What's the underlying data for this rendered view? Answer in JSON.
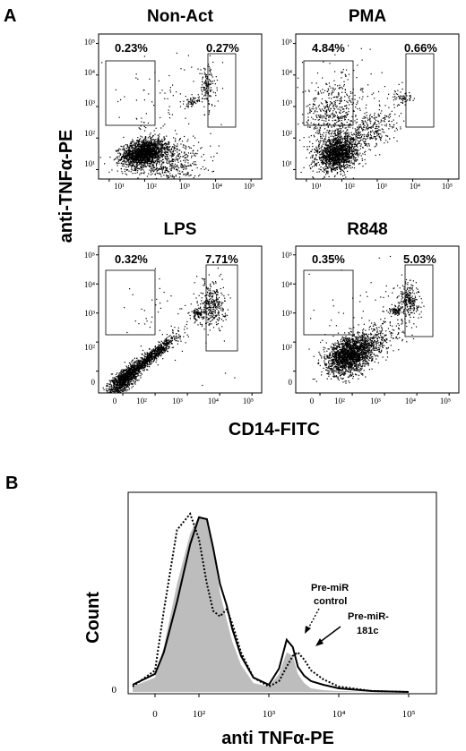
{
  "panel_a": {
    "label": "A",
    "y_axis_title": "anti-TNFα-PE",
    "x_axis_title": "CD14-FITC",
    "tick_labels_top_x": [
      "10¹",
      "10²",
      "10³",
      "10⁴",
      "10⁵"
    ],
    "tick_labels_top_y": [
      "10¹",
      "10²",
      "10³",
      "10⁴",
      "10⁵"
    ],
    "tick_labels_bottom_x": [
      "0",
      "10²",
      "10³",
      "10⁴",
      "10⁵"
    ],
    "tick_labels_bottom_y": [
      "0",
      "10²",
      "10³",
      "10⁴",
      "10⁵"
    ]
  },
  "panel_b": {
    "label": "B",
    "y_axis_title": "Count",
    "x_axis_title": "anti TNFα-PE",
    "y_zero": "0",
    "x_ticks": [
      "0",
      "10²",
      "10³",
      "10⁴",
      "10⁵"
    ],
    "annotation_control": [
      "Pre-miR",
      "control"
    ],
    "annotation_181c": [
      "Pre-miR-",
      "181c"
    ]
  },
  "chart_data": [
    {
      "type": "scatter",
      "title": "Non-Act",
      "xlabel": "CD14-FITC",
      "ylabel": "anti-TNFα-PE",
      "x_scale": "log",
      "y_scale": "log",
      "xlim": [
        10,
        100000
      ],
      "ylim": [
        10,
        100000
      ],
      "gates": [
        {
          "label": "0.23%",
          "x_range": [
            15,
            300
          ],
          "y_range": [
            300,
            15000
          ]
        },
        {
          "label": "0.27%",
          "x_range": [
            6000,
            20000
          ],
          "y_range": [
            300,
            30000
          ]
        }
      ]
    },
    {
      "type": "scatter",
      "title": "PMA",
      "xlabel": "CD14-FITC",
      "ylabel": "anti-TNFα-PE",
      "x_scale": "log",
      "y_scale": "log",
      "xlim": [
        10,
        100000
      ],
      "ylim": [
        10,
        100000
      ],
      "gates": [
        {
          "label": "4.84%",
          "x_range": [
            15,
            300
          ],
          "y_range": [
            300,
            15000
          ]
        },
        {
          "label": "0.66%",
          "x_range": [
            6000,
            20000
          ],
          "y_range": [
            300,
            30000
          ]
        }
      ]
    },
    {
      "type": "scatter",
      "title": "LPS",
      "xlabel": "CD14-FITC",
      "ylabel": "anti-TNFα-PE",
      "x_scale": "log",
      "y_scale": "log",
      "xlim": [
        0,
        100000
      ],
      "ylim": [
        0,
        100000
      ],
      "gates": [
        {
          "label": "0.32%",
          "x_range": [
            10,
            300
          ],
          "y_range": [
            300,
            15000
          ]
        },
        {
          "label": "7.71%",
          "x_range": [
            6000,
            20000
          ],
          "y_range": [
            300,
            30000
          ]
        }
      ]
    },
    {
      "type": "scatter",
      "title": "R848",
      "xlabel": "CD14-FITC",
      "ylabel": "anti-TNFα-PE",
      "x_scale": "log",
      "y_scale": "log",
      "xlim": [
        0,
        100000
      ],
      "ylim": [
        0,
        100000
      ],
      "gates": [
        {
          "label": "0.35%",
          "x_range": [
            10,
            300
          ],
          "y_range": [
            300,
            15000
          ]
        },
        {
          "label": "5.03%",
          "x_range": [
            6000,
            20000
          ],
          "y_range": [
            300,
            30000
          ]
        }
      ]
    },
    {
      "type": "area",
      "title": "",
      "xlabel": "anti TNFα-PE",
      "ylabel": "Count",
      "x_scale": "log",
      "xlim": [
        -30,
        200000
      ],
      "ylim": [
        0,
        1
      ],
      "series": [
        {
          "style": "filled-gray",
          "x": [
            -30,
            0,
            20,
            50,
            80,
            100,
            130,
            160,
            200,
            250,
            300,
            400,
            600,
            1000,
            1400,
            1800,
            2200,
            2600,
            3200,
            4000,
            6000,
            10000,
            30000,
            100000
          ],
          "values": [
            0.03,
            0.08,
            0.25,
            0.6,
            0.88,
            0.98,
            0.96,
            0.8,
            0.55,
            0.4,
            0.28,
            0.15,
            0.05,
            0.03,
            0.1,
            0.22,
            0.2,
            0.1,
            0.05,
            0.02,
            0.01,
            0.005,
            0,
            0
          ]
        },
        {
          "style": "solid-black",
          "name": "Pre-miR-181c",
          "x": [
            -30,
            0,
            20,
            50,
            80,
            100,
            130,
            160,
            200,
            250,
            300,
            400,
            600,
            1000,
            1400,
            1800,
            2200,
            2600,
            3200,
            4000,
            6000,
            10000,
            30000,
            100000
          ],
          "values": [
            0.04,
            0.1,
            0.22,
            0.5,
            0.82,
            0.97,
            0.96,
            0.8,
            0.6,
            0.48,
            0.35,
            0.2,
            0.08,
            0.04,
            0.13,
            0.29,
            0.25,
            0.14,
            0.09,
            0.06,
            0.04,
            0.02,
            0.005,
            0
          ]
        },
        {
          "style": "dotted-black",
          "name": "Pre-miR control",
          "x": [
            -30,
            0,
            20,
            50,
            80,
            100,
            130,
            160,
            200,
            250,
            300,
            400,
            600,
            1000,
            1400,
            1800,
            2200,
            2600,
            3200,
            4000,
            6000,
            10000,
            30000,
            100000
          ],
          "values": [
            0.03,
            0.12,
            0.45,
            0.9,
            0.99,
            0.85,
            0.6,
            0.45,
            0.42,
            0.46,
            0.38,
            0.22,
            0.08,
            0.03,
            0.06,
            0.14,
            0.2,
            0.22,
            0.18,
            0.12,
            0.07,
            0.03,
            0.005,
            0
          ]
        }
      ]
    }
  ]
}
